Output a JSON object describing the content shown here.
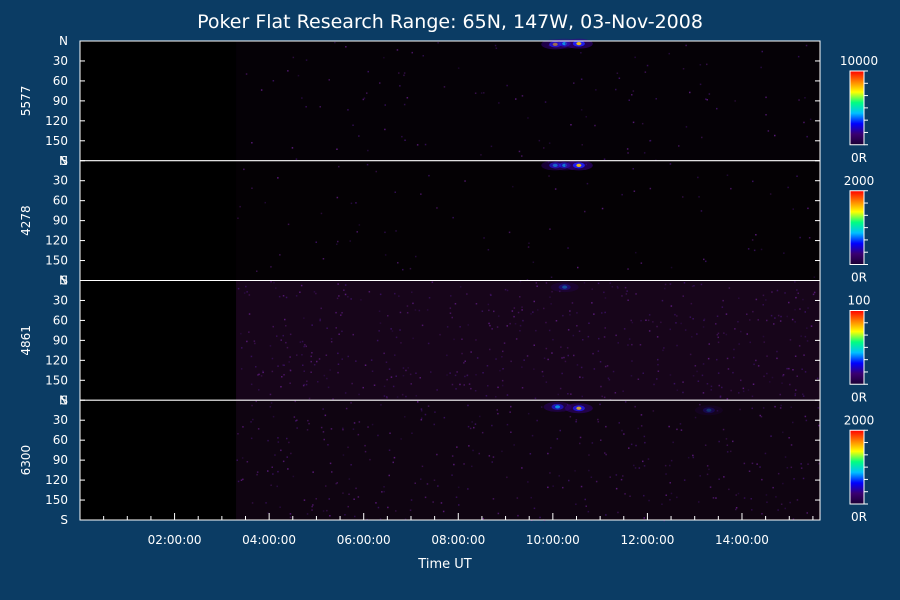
{
  "title": "Poker Flat Research Range: 65N, 147W, 03-Nov-2008",
  "chart_data": {
    "type": "heatmap",
    "title": "Poker Flat Research Range: 65N, 147W, 03-Nov-2008",
    "xlabel": "Time UT",
    "x_range_hours": [
      0.0,
      15.65
    ],
    "x_ticks": [
      {
        "hour": 2,
        "label": "02:00:00"
      },
      {
        "hour": 4,
        "label": "04:00:00"
      },
      {
        "hour": 6,
        "label": "06:00:00"
      },
      {
        "hour": 8,
        "label": "08:00:00"
      },
      {
        "hour": 10,
        "label": "10:00:00"
      },
      {
        "hour": 12,
        "label": "12:00:00"
      },
      {
        "hour": 14,
        "label": "14:00:00"
      }
    ],
    "y_ticks": [
      "N",
      "30",
      "60",
      "90",
      "120",
      "150",
      "S"
    ],
    "y_range": [
      0,
      180
    ],
    "data_start_hour": 3.3,
    "panels": [
      {
        "label": "5577",
        "scale_max": "10000",
        "scale_min": "0R",
        "noise": 0.04,
        "blobs": [
          {
            "hour": 10.05,
            "angle": 5,
            "intensity": 0.8
          },
          {
            "hour": 10.25,
            "angle": 4,
            "intensity": 0.6
          },
          {
            "hour": 10.55,
            "angle": 4,
            "intensity": 0.9
          }
        ]
      },
      {
        "label": "4278",
        "scale_max": "2000",
        "scale_min": "0R",
        "noise": 0.03,
        "blobs": [
          {
            "hour": 10.05,
            "angle": 7,
            "intensity": 0.6
          },
          {
            "hour": 10.25,
            "angle": 7,
            "intensity": 0.5
          },
          {
            "hour": 10.55,
            "angle": 7,
            "intensity": 0.9
          }
        ]
      },
      {
        "label": "4861",
        "scale_max": "100",
        "scale_min": "0R",
        "noise": 0.18,
        "blobs": [
          {
            "hour": 10.25,
            "angle": 10,
            "intensity": 0.3
          }
        ]
      },
      {
        "label": "6300",
        "scale_max": "2000",
        "scale_min": "0R",
        "noise": 0.12,
        "blobs": [
          {
            "hour": 10.1,
            "angle": 10,
            "intensity": 0.6
          },
          {
            "hour": 10.55,
            "angle": 12,
            "intensity": 0.75
          },
          {
            "hour": 13.3,
            "angle": 15,
            "intensity": 0.2
          }
        ]
      }
    ],
    "colorbar": [
      "#1a0033",
      "#3a0070",
      "#0000ff",
      "#00c0ff",
      "#00ff80",
      "#ffff00",
      "#ff8000",
      "#ff0000"
    ]
  }
}
